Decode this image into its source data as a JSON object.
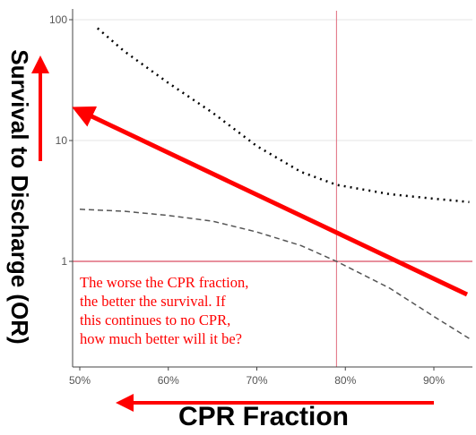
{
  "chart_data": {
    "type": "line",
    "xlabel": "CPR Fraction",
    "ylabel": "Survival to Discharge (OR)",
    "x_ticks": [
      "50%",
      "60%",
      "70%",
      "80%",
      "90%"
    ],
    "y_ticks": [
      "100",
      "10",
      "1"
    ],
    "xlim": [
      0.5,
      0.95
    ],
    "ylim": [
      0.2,
      120
    ],
    "yscale": "log",
    "grid": "horizontal",
    "series": [
      {
        "style": "dotted",
        "x": [
          0.52,
          0.55,
          0.6,
          0.65,
          0.7,
          0.75,
          0.79,
          0.85,
          0.9,
          0.94
        ],
        "y": [
          85,
          55,
          30,
          17,
          9,
          5.5,
          4.3,
          3.6,
          3.3,
          3.1
        ]
      },
      {
        "style": "dashed",
        "x": [
          0.5,
          0.55,
          0.6,
          0.65,
          0.7,
          0.75,
          0.79,
          0.85,
          0.9,
          0.94
        ],
        "y": [
          2.7,
          2.6,
          2.4,
          2.15,
          1.75,
          1.35,
          1.0,
          0.6,
          0.35,
          0.23
        ]
      }
    ],
    "reference_lines": {
      "x": 0.79,
      "y": 1,
      "color": "#e06b7d"
    },
    "annotation": {
      "text": "The worse the CPR fraction, the better the survival. If this continues to no CPR, how much better will it be?",
      "lines": [
        "The worse the CPR fraction,",
        "the better the survival. If",
        "this continues to no CPR,",
        "how much better will it be?"
      ],
      "color": "#ff0000"
    },
    "arrow_color": "#ff0000"
  }
}
